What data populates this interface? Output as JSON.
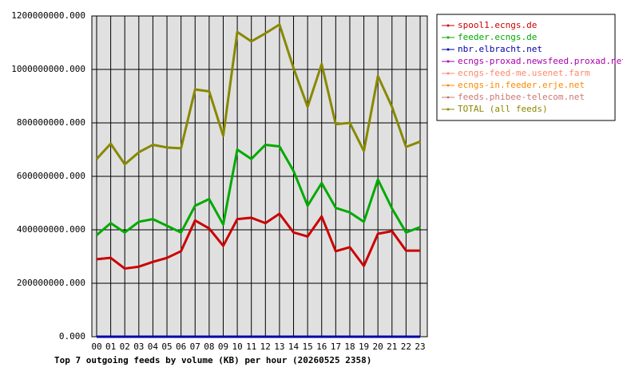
{
  "chart_data": {
    "type": "line",
    "title": "Top 7 outgoing feeds by volume (KB) per hour (20260525 2358)",
    "categories": [
      "00",
      "01",
      "02",
      "03",
      "04",
      "05",
      "06",
      "07",
      "08",
      "09",
      "10",
      "11",
      "12",
      "13",
      "14",
      "15",
      "16",
      "17",
      "18",
      "19",
      "20",
      "21",
      "22",
      "23"
    ],
    "ylim": [
      0,
      1200000000
    ],
    "yticks": [
      {
        "value": 0,
        "label": "0.000"
      },
      {
        "value": 200000000,
        "label": "200000000.000"
      },
      {
        "value": 400000000,
        "label": "400000000.000"
      },
      {
        "value": 600000000,
        "label": "600000000.000"
      },
      {
        "value": 800000000,
        "label": "800000000.000"
      },
      {
        "value": 1000000000,
        "label": "1000000000.000"
      },
      {
        "value": 1200000000,
        "label": "1200000000.000"
      }
    ],
    "grid": true,
    "series": [
      {
        "name": "spool1.ecngs.de",
        "color": "#cc0000",
        "values": [
          290000000,
          295000000,
          255000000,
          262000000,
          280000000,
          295000000,
          320000000,
          435000000,
          405000000,
          340000000,
          440000000,
          445000000,
          425000000,
          460000000,
          390000000,
          375000000,
          450000000,
          320000000,
          335000000,
          265000000,
          385000000,
          395000000,
          322000000,
          322000000
        ]
      },
      {
        "name": "feeder.ecngs.de",
        "color": "#00aa00",
        "values": [
          380000000,
          425000000,
          390000000,
          430000000,
          440000000,
          415000000,
          390000000,
          490000000,
          515000000,
          420000000,
          700000000,
          665000000,
          718000000,
          712000000,
          620000000,
          490000000,
          575000000,
          482000000,
          465000000,
          430000000,
          588000000,
          480000000,
          390000000,
          410000000
        ]
      },
      {
        "name": "nbr.elbracht.net",
        "color": "#0000aa",
        "values": [
          0,
          0,
          0,
          0,
          0,
          0,
          0,
          0,
          0,
          0,
          0,
          0,
          0,
          0,
          0,
          0,
          0,
          0,
          0,
          0,
          0,
          0,
          0,
          0
        ]
      },
      {
        "name": "ecngs-proxad.newsfeed.proxad.net",
        "color": "#aa00aa",
        "values": [
          0,
          0,
          0,
          0,
          0,
          0,
          0,
          0,
          0,
          0,
          0,
          0,
          0,
          0,
          0,
          0,
          0,
          0,
          0,
          0,
          0,
          0,
          0,
          0
        ]
      },
      {
        "name": "ecngs-feed-me.usenet.farm",
        "color": "#ff8866",
        "values": [
          0,
          0,
          0,
          0,
          0,
          0,
          0,
          0,
          0,
          0,
          0,
          0,
          0,
          0,
          0,
          0,
          0,
          0,
          0,
          0,
          0,
          0,
          0,
          0
        ]
      },
      {
        "name": "ecngs-in.feeder.erje.net",
        "color": "#ff8800",
        "values": [
          0,
          0,
          0,
          0,
          0,
          0,
          0,
          0,
          0,
          0,
          0,
          0,
          0,
          0,
          0,
          0,
          0,
          0,
          0,
          0,
          0,
          0,
          0,
          0
        ]
      },
      {
        "name": "feeds.phibee-telecom.net",
        "color": "#cc7777",
        "values": [
          0,
          0,
          0,
          0,
          0,
          0,
          0,
          0,
          0,
          0,
          0,
          0,
          0,
          0,
          0,
          0,
          0,
          0,
          0,
          0,
          0,
          0,
          0,
          0
        ]
      },
      {
        "name": "TOTAL (all feeds)",
        "color": "#888800",
        "values": [
          665000000,
          722000000,
          645000000,
          690000000,
          718000000,
          708000000,
          705000000,
          925000000,
          918000000,
          752000000,
          1140000000,
          1105000000,
          1135000000,
          1168000000,
          1005000000,
          860000000,
          1020000000,
          795000000,
          800000000,
          695000000,
          975000000,
          860000000,
          710000000,
          730000000
        ]
      }
    ],
    "legend": "upper right"
  }
}
